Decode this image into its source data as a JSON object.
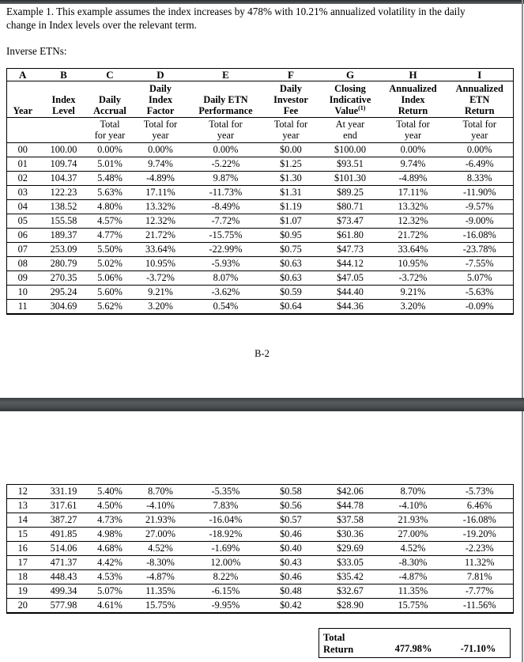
{
  "page": {
    "intro": "Example 1. This example assumes the index increases by 478% with 10.21% annualized volatility in the daily change in Index levels over the relevant term.",
    "section_label": "Inverse ETNs:",
    "page_number": "B-2"
  },
  "table": {
    "letters": [
      "A",
      "B",
      "C",
      "D",
      "E",
      "F",
      "G",
      "H",
      "I"
    ],
    "headers": {
      "a": "Year",
      "b": "Index\nLevel",
      "c": "Daily\nAccrual",
      "d": "Daily\nIndex\nFactor",
      "e": "Daily ETN\nPerformance",
      "f": "Daily\nInvestor\nFee",
      "g": "Closing\nIndicative\nValue",
      "g_sup": "(1)",
      "h": "Annualized\nIndex\nReturn",
      "i": "Annualized\nETN\nReturn"
    },
    "subheaders": [
      "",
      "",
      "Total\nfor year",
      "Total for\nyear",
      "Total for\nyear",
      "Total for\nyear",
      "At year\nend",
      "Total for\nyear",
      "Total for\nyear"
    ],
    "rows_part1": [
      [
        "00",
        "100.00",
        "0.00%",
        "0.00%",
        "0.00%",
        "$0.00",
        "$100.00",
        "0.00%",
        "0.00%"
      ],
      [
        "01",
        "109.74",
        "5.01%",
        "9.74%",
        "-5.22%",
        "$1.25",
        "$93.51",
        "9.74%",
        "-6.49%"
      ],
      [
        "02",
        "104.37",
        "5.48%",
        "-4.89%",
        "9.87%",
        "$1.30",
        "$101.30",
        "-4.89%",
        "8.33%"
      ],
      [
        "03",
        "122.23",
        "5.63%",
        "17.11%",
        "-11.73%",
        "$1.31",
        "$89.25",
        "17.11%",
        "-11.90%"
      ],
      [
        "04",
        "138.52",
        "4.80%",
        "13.32%",
        "-8.49%",
        "$1.19",
        "$80.71",
        "13.32%",
        "-9.57%"
      ],
      [
        "05",
        "155.58",
        "4.57%",
        "12.32%",
        "-7.72%",
        "$1.07",
        "$73.47",
        "12.32%",
        "-9.00%"
      ],
      [
        "06",
        "189.37",
        "4.77%",
        "21.72%",
        "-15.75%",
        "$0.95",
        "$61.80",
        "21.72%",
        "-16.08%"
      ],
      [
        "07",
        "253.09",
        "5.50%",
        "33.64%",
        "-22.99%",
        "$0.75",
        "$47.73",
        "33.64%",
        "-23.78%"
      ],
      [
        "08",
        "280.79",
        "5.02%",
        "10.95%",
        "-5.93%",
        "$0.63",
        "$44.12",
        "10.95%",
        "-7.55%"
      ],
      [
        "09",
        "270.35",
        "5.06%",
        "-3.72%",
        "8.07%",
        "$0.63",
        "$47.05",
        "-3.72%",
        "5.07%"
      ],
      [
        "10",
        "295.24",
        "5.60%",
        "9.21%",
        "-3.62%",
        "$0.59",
        "$44.40",
        "9.21%",
        "-5.63%"
      ],
      [
        "11",
        "304.69",
        "5.62%",
        "3.20%",
        "0.54%",
        "$0.64",
        "$44.36",
        "3.20%",
        "-0.09%"
      ]
    ],
    "rows_part2": [
      [
        "12",
        "331.19",
        "5.40%",
        "8.70%",
        "-5.35%",
        "$0.58",
        "$42.06",
        "8.70%",
        "-5.73%"
      ],
      [
        "13",
        "317.61",
        "4.50%",
        "-4.10%",
        "7.83%",
        "$0.56",
        "$44.78",
        "-4.10%",
        "6.46%"
      ],
      [
        "14",
        "387.27",
        "4.73%",
        "21.93%",
        "-16.04%",
        "$0.57",
        "$37.58",
        "21.93%",
        "-16.08%"
      ],
      [
        "15",
        "491.85",
        "4.98%",
        "27.00%",
        "-18.92%",
        "$0.46",
        "$30.36",
        "27.00%",
        "-19.20%"
      ],
      [
        "16",
        "514.06",
        "4.68%",
        "4.52%",
        "-1.69%",
        "$0.40",
        "$29.69",
        "4.52%",
        "-2.23%"
      ],
      [
        "17",
        "471.37",
        "4.42%",
        "-8.30%",
        "12.00%",
        "$0.43",
        "$33.05",
        "-8.30%",
        "11.32%"
      ],
      [
        "18",
        "448.43",
        "4.53%",
        "-4.87%",
        "8.22%",
        "$0.46",
        "$35.42",
        "-4.87%",
        "7.81%"
      ],
      [
        "19",
        "499.34",
        "5.07%",
        "11.35%",
        "-6.15%",
        "$0.48",
        "$32.67",
        "11.35%",
        "-7.77%"
      ],
      [
        "20",
        "577.98",
        "4.61%",
        "15.75%",
        "-9.95%",
        "$0.42",
        "$28.90",
        "15.75%",
        "-11.56%"
      ]
    ]
  },
  "total": {
    "label": "Total\nReturn",
    "index_return": "477.98%",
    "etn_return": "-71.10%"
  }
}
